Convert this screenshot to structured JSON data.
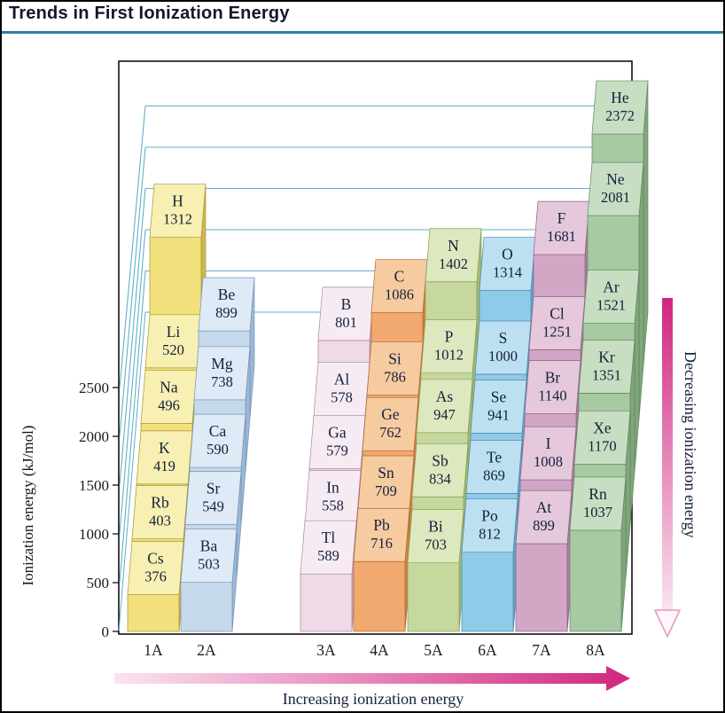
{
  "chart_data": {
    "type": "bar3d",
    "title": "Trends in First Ionization Energy",
    "ylabel": "Ionization energy (kJ/mol)",
    "unit": "kJ/mol",
    "yticks": [
      0,
      500,
      1000,
      1500,
      2000,
      2500
    ],
    "ylim": [
      0,
      2500
    ],
    "categories": [
      "1A",
      "2A",
      "3A",
      "4A",
      "5A",
      "6A",
      "7A",
      "8A"
    ],
    "arrows": {
      "increasing": "Increasing ionization energy",
      "decreasing": "Decreasing ionization energy"
    },
    "colors": {
      "arrow": "#D0267F",
      "arrow_pale": "#FAE4F0",
      "grid": "#5FB0C9",
      "frame": "#000000",
      "text": "#14213D",
      "axis_text": "#1A1A1A",
      "title_rule": "#2A7FA5"
    },
    "groups": [
      {
        "label": "1A",
        "colors": {
          "front": "#F1E07C",
          "top": "#F8F0B2",
          "side": "#CDB952",
          "edge": "#A79532"
        },
        "elements": [
          {
            "symbol": "H",
            "value": 1312,
            "period": 1
          },
          {
            "symbol": "Li",
            "value": 520,
            "period": 2
          },
          {
            "symbol": "Na",
            "value": 496,
            "period": 3
          },
          {
            "symbol": "K",
            "value": 419,
            "period": 4
          },
          {
            "symbol": "Rb",
            "value": 403,
            "period": 5
          },
          {
            "symbol": "Cs",
            "value": 376,
            "period": 6
          }
        ]
      },
      {
        "label": "2A",
        "colors": {
          "front": "#C5D9EB",
          "top": "#DEEAF5",
          "side": "#9BB9D6",
          "edge": "#7593B5"
        },
        "elements": [
          {
            "symbol": "Be",
            "value": 899,
            "period": 2
          },
          {
            "symbol": "Mg",
            "value": 738,
            "period": 3
          },
          {
            "symbol": "Ca",
            "value": 590,
            "period": 4
          },
          {
            "symbol": "Sr",
            "value": 549,
            "period": 5
          },
          {
            "symbol": "Ba",
            "value": 503,
            "period": 6
          }
        ]
      },
      {
        "label": "3A",
        "colors": {
          "front": "#EFDAE8",
          "top": "#F7EBF3",
          "side": "#C9A9C0",
          "edge": "#A9879F"
        },
        "elements": [
          {
            "symbol": "B",
            "value": 801,
            "period": 2
          },
          {
            "symbol": "Al",
            "value": 578,
            "period": 3
          },
          {
            "symbol": "Ga",
            "value": 579,
            "period": 4
          },
          {
            "symbol": "In",
            "value": 558,
            "period": 5
          },
          {
            "symbol": "Tl",
            "value": 589,
            "period": 6
          }
        ]
      },
      {
        "label": "4A",
        "colors": {
          "front": "#F1A970",
          "top": "#F7CBA0",
          "side": "#D0823F",
          "edge": "#AF6A31"
        },
        "elements": [
          {
            "symbol": "C",
            "value": 1086,
            "period": 2
          },
          {
            "symbol": "Si",
            "value": 786,
            "period": 3
          },
          {
            "symbol": "Ge",
            "value": 762,
            "period": 4
          },
          {
            "symbol": "Sn",
            "value": 709,
            "period": 5
          },
          {
            "symbol": "Pb",
            "value": 716,
            "period": 6
          }
        ]
      },
      {
        "label": "5A",
        "colors": {
          "front": "#C6D89E",
          "top": "#DDE8BF",
          "side": "#A2B971",
          "edge": "#85A055"
        },
        "elements": [
          {
            "symbol": "N",
            "value": 1402,
            "period": 2
          },
          {
            "symbol": "P",
            "value": 1012,
            "period": 3
          },
          {
            "symbol": "As",
            "value": 947,
            "period": 4
          },
          {
            "symbol": "Sb",
            "value": 834,
            "period": 5
          },
          {
            "symbol": "Bi",
            "value": 703,
            "period": 6
          }
        ]
      },
      {
        "label": "6A",
        "colors": {
          "front": "#8FCBE8",
          "top": "#BCE0F2",
          "side": "#5FA6CB",
          "edge": "#4C87AC"
        },
        "elements": [
          {
            "symbol": "O",
            "value": 1314,
            "period": 2
          },
          {
            "symbol": "S",
            "value": 1000,
            "period": 3
          },
          {
            "symbol": "Se",
            "value": 941,
            "period": 4
          },
          {
            "symbol": "Te",
            "value": 869,
            "period": 5
          },
          {
            "symbol": "Po",
            "value": 812,
            "period": 6
          }
        ]
      },
      {
        "label": "7A",
        "colors": {
          "front": "#D2A6C5",
          "top": "#E5C8DB",
          "side": "#AC7E9F",
          "edge": "#8D6283"
        },
        "elements": [
          {
            "symbol": "F",
            "value": 1681,
            "period": 2
          },
          {
            "symbol": "Cl",
            "value": 1251,
            "period": 3
          },
          {
            "symbol": "Br",
            "value": 1140,
            "period": 4
          },
          {
            "symbol": "I",
            "value": 1008,
            "period": 5
          },
          {
            "symbol": "At",
            "value": 899,
            "period": 6
          }
        ]
      },
      {
        "label": "8A",
        "colors": {
          "front": "#A7CAA2",
          "top": "#C8DEC2",
          "side": "#80A67C",
          "edge": "#628760"
        },
        "elements": [
          {
            "symbol": "He",
            "value": 2372,
            "period": 1
          },
          {
            "symbol": "Ne",
            "value": 2081,
            "period": 2
          },
          {
            "symbol": "Ar",
            "value": 1521,
            "period": 3
          },
          {
            "symbol": "Kr",
            "value": 1351,
            "period": 4
          },
          {
            "symbol": "Xe",
            "value": 1170,
            "period": 5
          },
          {
            "symbol": "Rn",
            "value": 1037,
            "period": 6
          }
        ]
      }
    ]
  }
}
